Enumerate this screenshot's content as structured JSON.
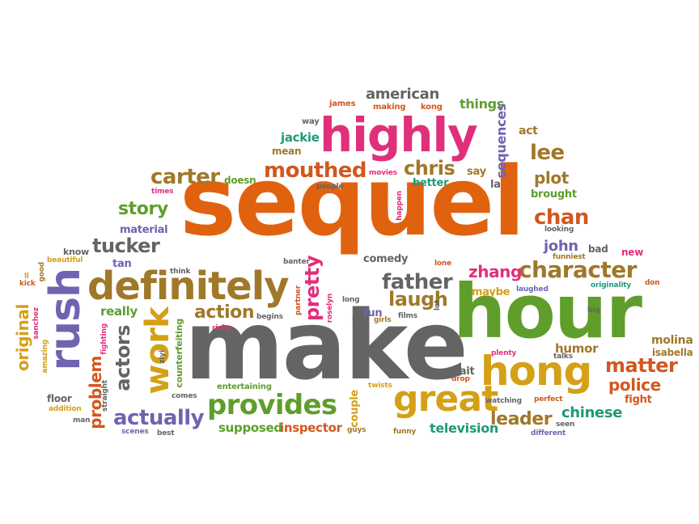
{
  "colors": {
    "orange": "#e0620f",
    "green": "#5f9e2b",
    "gray": "#646464",
    "magenta": "#e0307b",
    "purple": "#6e64b0",
    "gold": "#d4a017",
    "brown": "#a0782a",
    "teal": "#1e9a78",
    "lightgray": "#8a8a8a",
    "red": "#d2571f"
  },
  "words": {
    "sequel": "sequel",
    "make": "make",
    "hour": "hour",
    "highly": "highly",
    "definitely": "definitely",
    "rush": "rush",
    "hong": "hong",
    "great": "great",
    "provides": "provides",
    "work": "work",
    "mouthed": "mouthed",
    "carter": "carter",
    "character": "character",
    "chris": "chris",
    "tucker": "tucker",
    "father": "father",
    "actually": "actually",
    "laugh": "laugh",
    "lee": "lee",
    "chan": "chan",
    "matter": "matter",
    "action": "action",
    "story": "story",
    "leader": "leader",
    "pretty": "pretty",
    "actors": "actors",
    "problem": "problem",
    "plot": "plot",
    "police": "police",
    "zhang": "zhang",
    "american": "american",
    "john": "john",
    "chinese": "chinese",
    "television": "television",
    "inspector": "inspector",
    "supposed": "supposed",
    "original": "original",
    "things": "things",
    "sequences": "sequences",
    "jackie": "jackie",
    "humor": "humor",
    "comedy": "comedy",
    "really": "really",
    "material": "material",
    "know": "know",
    "tan": "tan",
    "fight": "fight",
    "molina": "molina",
    "isabella": "isabella",
    "wait": "wait",
    "couple": "couple",
    "fun": "fun",
    "maybe": "maybe",
    "brought": "brought",
    "better": "better",
    "say": "say",
    "la": "la",
    "act": "act",
    "mean": "mean",
    "way": "way",
    "james": "james",
    "making": "making",
    "kong": "kong",
    "doesn": "doesn",
    "times": "times",
    "movies": "movies",
    "people": "people",
    "happen": "happen",
    "funniest": "funniest",
    "looking": "looking",
    "bad": "bad",
    "new": "new",
    "don": "don",
    "originality": "originality",
    "laughed": "laughed",
    "lone": "lone",
    "big": "big",
    "talks": "talks",
    "plenty": "plenty",
    "drop": "drop",
    "perfect": "perfect",
    "watching": "watching",
    "seen": "seen",
    "different": "different",
    "funny": "funny",
    "guys": "guys",
    "twists": "twists",
    "saw": "saw",
    "girls": "girls",
    "films": "films",
    "lot": "lot",
    "long": "long",
    "roselyn": "roselyn",
    "partner": "partner",
    "banter": "banter",
    "think": "think",
    "begins": "begins",
    "ricky": "ricky",
    "counterfeiting": "counterfeiting",
    "entertaining": "entertaining",
    "comes": "comes",
    "best": "best",
    "scenes": "scenes",
    "ziyi": "ziyi",
    "man": "man",
    "addition": "addition",
    "floor": "floor",
    "straight": "straight",
    "fighting": "fighting",
    "amazing": "amazing",
    "sanchez": "sanchez",
    "kick": "kick",
    "ll": "ll",
    "good": "good",
    "beautiful": "beautiful"
  }
}
